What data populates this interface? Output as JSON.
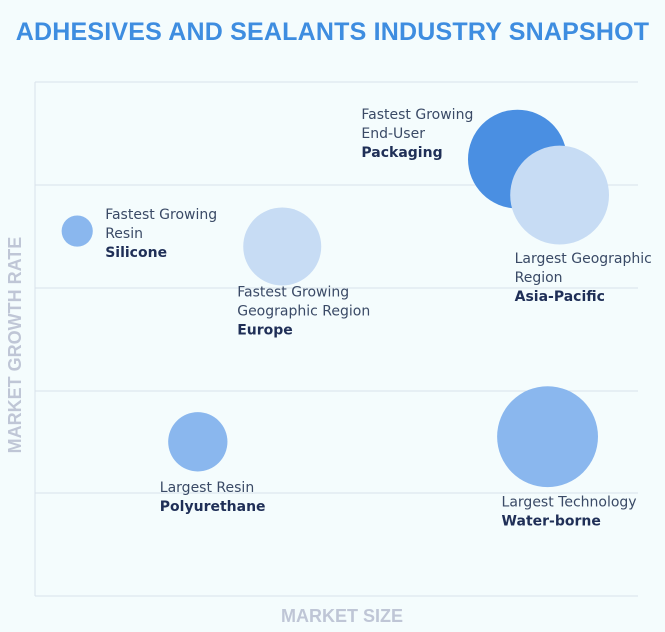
{
  "title": "ADHESIVES AND SEALANTS INDUSTRY SNAPSHOT",
  "chart_data": {
    "type": "bubble",
    "title": "ADHESIVES AND SEALANTS INDUSTRY SNAPSHOT",
    "xlabel": "MARKET SIZE",
    "ylabel": "MARKET GROWTH RATE",
    "grid": true,
    "points": [
      {
        "lines": [
          "Fastest Growing",
          "Resin"
        ],
        "bold": "Silicone",
        "x": 0.07,
        "y": 0.71,
        "size": 0.3,
        "color": "#8ab7ee"
      },
      {
        "lines": [
          "Fastest Growing",
          "Geographic Region"
        ],
        "bold": "Europe",
        "x": 0.41,
        "y": 0.68,
        "size": 0.75,
        "color": "#c7dcf4"
      },
      {
        "lines": [
          "Fastest Growing",
          "End-User"
        ],
        "bold": "Packaging",
        "x": 0.8,
        "y": 0.85,
        "size": 0.95,
        "color": "#4a8fe2"
      },
      {
        "lines": [
          "Largest Geographic",
          "Region"
        ],
        "bold": "Asia-Pacific",
        "x": 0.87,
        "y": 0.78,
        "size": 0.95,
        "color": "#c7dcf4"
      },
      {
        "lines": [
          "Largest Resin"
        ],
        "bold": "Polyurethane",
        "x": 0.27,
        "y": 0.3,
        "size": 0.57,
        "color": "#8ab7ee"
      },
      {
        "lines": [
          "Largest Technology"
        ],
        "bold": "Water-borne",
        "x": 0.85,
        "y": 0.31,
        "size": 0.97,
        "color": "#8ab7ee"
      }
    ]
  }
}
